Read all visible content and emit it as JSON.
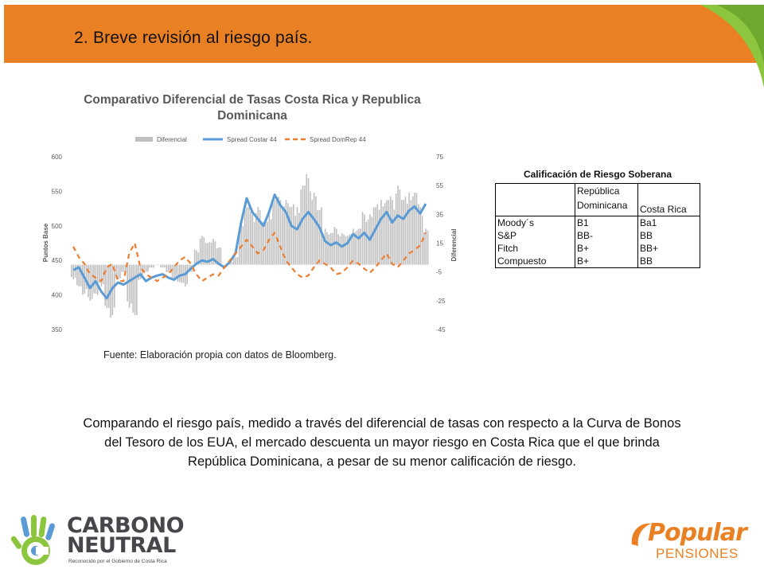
{
  "slide": {
    "title": "2. Breve revisión al riesgo país.",
    "source": "Fuente: Elaboración propia  con datos de Bloomberg.",
    "body": "Comparando el riesgo país, medido  a través del diferencial de tasas con respecto a la Curva de Bonos del Tesoro de los EUA, el mercado descuenta un mayor  riesgo en Costa Rica que el que brinda República Dominicana, a pesar de  su menor calificación de riesgo.",
    "accent_color": "#e98124"
  },
  "chart_data": {
    "type": "line",
    "title": "Comparativo Diferencial de Tasas Costa Rica y Republica Dominicana",
    "ylabel_left": "Puntos Base",
    "ylabel_right": "Diferencial",
    "ylim_left": [
      350,
      600
    ],
    "ylim_right": [
      -45,
      75
    ],
    "yticks_left": [
      "600",
      "550",
      "500",
      "450",
      "400",
      "350"
    ],
    "yticks_right": [
      "75",
      "55",
      "35",
      "15",
      "-5",
      "-25",
      "-45"
    ],
    "legend": [
      "Diferencial",
      "Spread Costar 44",
      "Spread DomRep 44"
    ],
    "legend_placement": "top",
    "grid": false,
    "colors": {
      "diferencial": "#bfbfbf",
      "costa_rica": "#5b9bd5",
      "domrep": "#ed7d31"
    },
    "series": [
      {
        "name": "Spread Costar 44",
        "axis": "left",
        "values": [
          436,
          440,
          425,
          410,
          420,
          405,
          395,
          410,
          418,
          415,
          420,
          425,
          430,
          420,
          425,
          428,
          430,
          425,
          422,
          428,
          430,
          438,
          445,
          450,
          448,
          452,
          445,
          440,
          448,
          460,
          505,
          540,
          520,
          510,
          500,
          520,
          545,
          530,
          520,
          500,
          495,
          510,
          520,
          510,
          498,
          478,
          472,
          476,
          470,
          475,
          488,
          482,
          490,
          480,
          495,
          510,
          520,
          505,
          515,
          510,
          522,
          528,
          518,
          532
        ]
      },
      {
        "name": "Spread DomRep 44",
        "axis": "left",
        "values": [
          470,
          455,
          445,
          430,
          425,
          420,
          440,
          445,
          420,
          420,
          460,
          475,
          440,
          430,
          425,
          420,
          425,
          430,
          440,
          450,
          455,
          445,
          430,
          420,
          425,
          430,
          428,
          440,
          450,
          460,
          470,
          480,
          470,
          460,
          465,
          480,
          490,
          470,
          450,
          440,
          430,
          425,
          428,
          440,
          450,
          445,
          440,
          430,
          432,
          440,
          450,
          445,
          438,
          432,
          440,
          450,
          460,
          445,
          440,
          450,
          460,
          465,
          472,
          490
        ]
      },
      {
        "name": "Diferencial",
        "axis": "right",
        "values": [
          -10,
          -15,
          -20,
          -25,
          -20,
          -15,
          -30,
          -35,
          -10,
          -5,
          -30,
          -35,
          -10,
          -5,
          -2,
          0,
          -2,
          -5,
          -10,
          -12,
          -15,
          -5,
          10,
          20,
          15,
          18,
          12,
          0,
          2,
          5,
          30,
          40,
          35,
          40,
          30,
          35,
          45,
          45,
          45,
          40,
          40,
          55,
          60,
          50,
          38,
          25,
          22,
          25,
          22,
          20,
          25,
          25,
          35,
          35,
          40,
          45,
          45,
          45,
          55,
          45,
          50,
          50,
          40,
          25
        ]
      }
    ]
  },
  "ratings_table": {
    "title": "Calificación de Riesgo Soberana",
    "headers": [
      "",
      "República Dominicana",
      "Costa Rica"
    ],
    "rows": [
      [
        "Moody´s",
        "B1",
        "Ba1"
      ],
      [
        "S&P",
        "BB-",
        "BB"
      ],
      [
        "Fitch",
        "B+",
        "BB+"
      ],
      [
        "Compuesto",
        "B+",
        "BB"
      ]
    ]
  },
  "logos": {
    "left": {
      "line1": "CARBONO",
      "line2": "NEUTRAL",
      "subtitle": "Reconocido por el Gobierno de Costa Rica"
    },
    "right": {
      "line1": "Popular",
      "line2": "PENSIONES"
    }
  }
}
